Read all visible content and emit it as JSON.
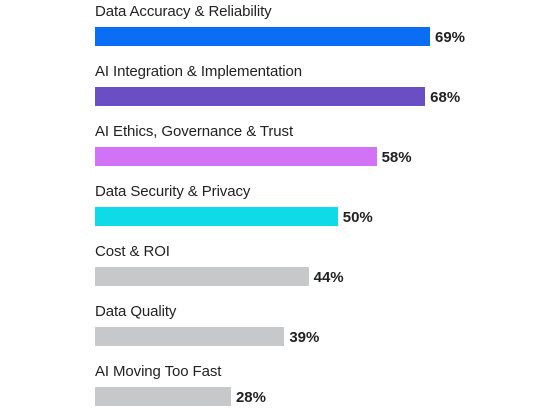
{
  "chart_data": {
    "type": "bar",
    "orientation": "horizontal",
    "categories": [
      "Data Accuracy & Reliability",
      "AI Integration & Implementation",
      "AI Ethics, Governance & Trust",
      "Data Security & Privacy",
      "Cost & ROI",
      "Data Quality",
      "AI Moving Too Fast"
    ],
    "values": [
      69,
      68,
      58,
      50,
      44,
      39,
      28
    ],
    "value_labels": [
      "69%",
      "68%",
      "58%",
      "50%",
      "44%",
      "39%",
      "28%"
    ],
    "colors": [
      "#0a6ef5",
      "#6a4fc4",
      "#d273f7",
      "#0fdbe8",
      "#c6c8c9",
      "#c6c8c9",
      "#c6c8c9"
    ],
    "title": "",
    "xlabel": "",
    "ylabel": "",
    "xlim": [
      0,
      100
    ],
    "grid": false,
    "legend": "none"
  }
}
